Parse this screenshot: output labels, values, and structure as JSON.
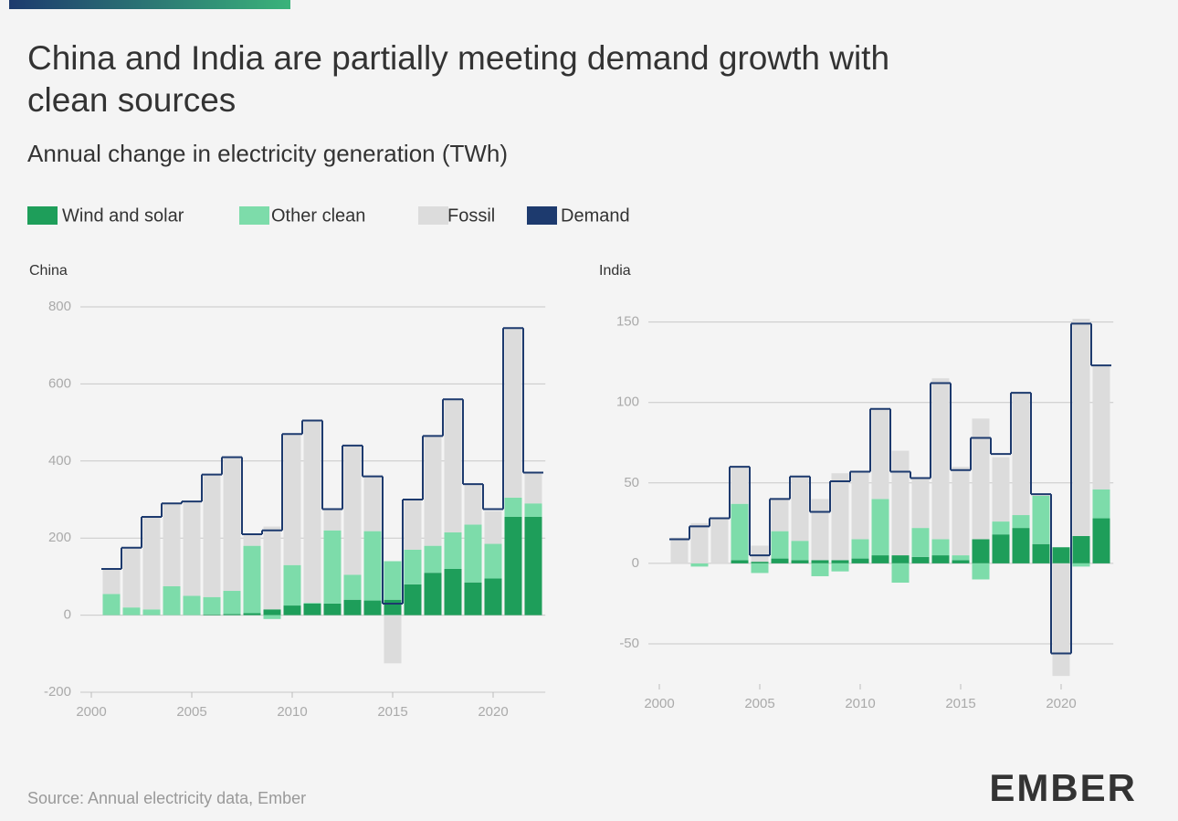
{
  "title": "China and India are partially meeting demand growth with clean sources",
  "subtitle": "Annual change in electricity generation (TWh)",
  "source": "Source: Annual electricity data, Ember",
  "logo": "EMBER",
  "chart_data": [
    {
      "type": "bar",
      "stacked": true,
      "title": "China",
      "x": [
        2001,
        2002,
        2003,
        2004,
        2005,
        2006,
        2007,
        2008,
        2009,
        2010,
        2011,
        2012,
        2013,
        2014,
        2015,
        2016,
        2017,
        2018,
        2019,
        2020,
        2021,
        2022
      ],
      "series": [
        {
          "name": "Wind and solar",
          "color": "#1e9e5a",
          "values": [
            0,
            0,
            0,
            0,
            0,
            2,
            3,
            5,
            15,
            25,
            30,
            30,
            40,
            38,
            40,
            80,
            110,
            120,
            85,
            95,
            255,
            255
          ]
        },
        {
          "name": "Other clean",
          "color": "#7ddcaa",
          "values": [
            55,
            20,
            15,
            75,
            50,
            45,
            60,
            175,
            -10,
            105,
            2,
            190,
            65,
            180,
            100,
            90,
            70,
            95,
            150,
            90,
            50,
            35
          ]
        },
        {
          "name": "Fossil",
          "color": "#dcdcdc",
          "values": [
            65,
            155,
            240,
            215,
            245,
            318,
            347,
            30,
            215,
            340,
            473,
            55,
            335,
            142,
            -125,
            130,
            285,
            345,
            105,
            85,
            440,
            80
          ]
        },
        {
          "name": "Demand",
          "color": "#1d3a6e",
          "type": "step",
          "values": [
            120,
            175,
            255,
            290,
            295,
            365,
            410,
            210,
            220,
            470,
            505,
            275,
            440,
            360,
            30,
            300,
            465,
            560,
            340,
            275,
            745,
            370
          ]
        }
      ],
      "xlim": [
        2000,
        2022.6
      ],
      "xticks": [
        2000,
        2005,
        2010,
        2015,
        2020
      ],
      "ylim": [
        -200,
        800
      ],
      "yticks": [
        -200,
        0,
        200,
        400,
        600,
        800
      ],
      "grid": true
    },
    {
      "type": "bar",
      "stacked": true,
      "title": "India",
      "x": [
        2001,
        2002,
        2003,
        2004,
        2005,
        2006,
        2007,
        2008,
        2009,
        2010,
        2011,
        2012,
        2013,
        2014,
        2015,
        2016,
        2017,
        2018,
        2019,
        2020,
        2021,
        2022
      ],
      "series": [
        {
          "name": "Wind and solar",
          "color": "#1e9e5a",
          "values": [
            0,
            0,
            0,
            2,
            1,
            3,
            2,
            2,
            2,
            3,
            5,
            5,
            4,
            5,
            2,
            15,
            18,
            22,
            12,
            10,
            17,
            28
          ]
        },
        {
          "name": "Other clean",
          "color": "#7ddcaa",
          "values": [
            0,
            -2,
            0,
            35,
            -6,
            17,
            12,
            -8,
            -5,
            12,
            35,
            -12,
            18,
            10,
            3,
            -10,
            8,
            8,
            30,
            0,
            -2,
            18
          ]
        },
        {
          "name": "Fossil",
          "color": "#dcdcdc",
          "values": [
            16,
            25,
            28,
            23,
            10,
            20,
            40,
            38,
            54,
            42,
            56,
            65,
            31,
            100,
            55,
            75,
            40,
            76,
            1,
            -70,
            135,
            77
          ]
        },
        {
          "name": "Demand",
          "color": "#1d3a6e",
          "type": "step",
          "values": [
            15,
            23,
            28,
            60,
            5,
            40,
            54,
            32,
            51,
            57,
            96,
            57,
            53,
            112,
            58,
            78,
            68,
            106,
            43,
            -56,
            149,
            123
          ]
        }
      ],
      "xlim": [
        2000,
        2022.6
      ],
      "xticks": [
        2000,
        2005,
        2010,
        2015,
        2020
      ],
      "ylim": [
        -75,
        160
      ],
      "yticks": [
        -50,
        0,
        50,
        100,
        150
      ],
      "grid": true
    }
  ]
}
